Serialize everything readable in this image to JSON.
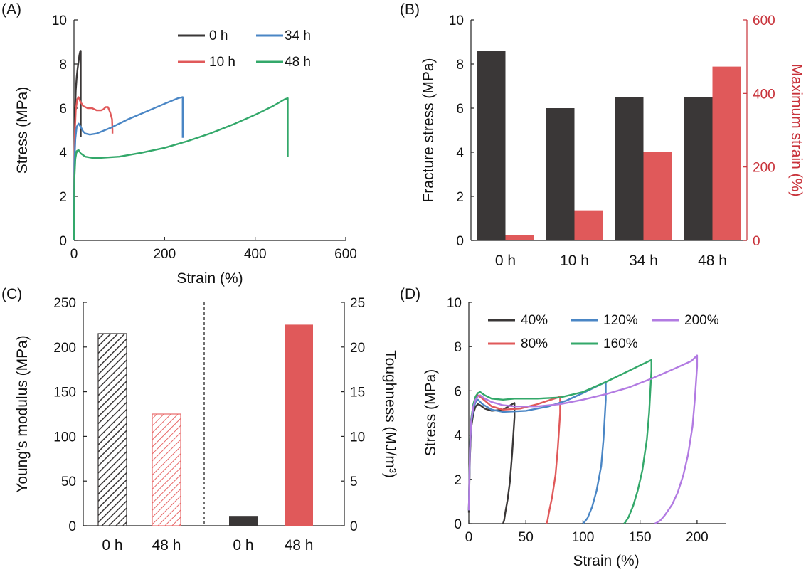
{
  "colors": {
    "black": "#3a3737",
    "red": "#e0595a",
    "red_axis": "#c8323a",
    "blue": "#4a86c5",
    "green": "#33a86a",
    "purple": "#b27be2",
    "red_hatch": "#e86a6a"
  },
  "panels": {
    "A": {
      "label": "(A)"
    },
    "B": {
      "label": "(B)"
    },
    "C": {
      "label": "(C)"
    },
    "D": {
      "label": "(D)"
    }
  },
  "chart_data": [
    {
      "panel": "(A)",
      "type": "line",
      "xlabel": "Strain (%)",
      "ylabel": "Stress (MPa)",
      "xlim": [
        0,
        600
      ],
      "ylim": [
        0,
        10
      ],
      "xticks": [
        "0",
        "200",
        "400",
        "600"
      ],
      "yticks": [
        "0",
        "2",
        "4",
        "6",
        "8",
        "10"
      ],
      "legend_position": "top-right",
      "series": [
        {
          "name": "0 h",
          "color": "#3a3737",
          "x": [
            0,
            2,
            4,
            6,
            8,
            10,
            12,
            14,
            15,
            15
          ],
          "y": [
            0,
            5.5,
            6.8,
            7.4,
            7.8,
            8.1,
            8.4,
            8.6,
            8.6,
            4.7
          ]
        },
        {
          "name": "10 h",
          "color": "#e0595a",
          "x": [
            0,
            1,
            2,
            4,
            7,
            10,
            14,
            20,
            30,
            40,
            50,
            60,
            65,
            70,
            75,
            80,
            84,
            85,
            85
          ],
          "y": [
            0,
            3.8,
            5.0,
            5.9,
            6.4,
            6.5,
            6.3,
            6.1,
            6.0,
            6.0,
            5.9,
            5.9,
            5.95,
            6.05,
            6.05,
            5.8,
            5.5,
            5.0,
            4.85
          ]
        },
        {
          "name": "34 h",
          "color": "#4a86c5",
          "x": [
            0,
            1,
            3,
            6,
            10,
            15,
            20,
            25,
            35,
            50,
            80,
            120,
            160,
            200,
            230,
            240,
            240
          ],
          "y": [
            0,
            3.5,
            4.6,
            5.15,
            5.3,
            5.15,
            4.95,
            4.85,
            4.8,
            4.85,
            5.1,
            5.5,
            5.85,
            6.2,
            6.45,
            6.5,
            4.65
          ]
        },
        {
          "name": "48 h",
          "color": "#33a86a",
          "x": [
            0,
            1,
            3,
            6,
            10,
            15,
            25,
            40,
            60,
            100,
            150,
            200,
            250,
            300,
            350,
            400,
            440,
            465,
            472,
            472
          ],
          "y": [
            0,
            2.8,
            3.7,
            4.05,
            4.1,
            3.95,
            3.8,
            3.75,
            3.75,
            3.8,
            3.98,
            4.2,
            4.5,
            4.85,
            5.25,
            5.7,
            6.1,
            6.4,
            6.45,
            3.8
          ]
        }
      ]
    },
    {
      "panel": "(B)",
      "type": "bar",
      "categories": [
        "0 h",
        "10 h",
        "34 h",
        "48 h"
      ],
      "ylabel": "Fracture stress (MPa)",
      "ylabel_right": "Maximum strain (%)",
      "ylim": [
        0,
        10
      ],
      "ylim_right": [
        0,
        600
      ],
      "yticks": [
        "0",
        "2",
        "4",
        "6",
        "8",
        "10"
      ],
      "yticks_right": [
        "0",
        "200",
        "400",
        "600"
      ],
      "series": [
        {
          "name": "Fracture stress (MPa)",
          "axis": "left",
          "color": "#3a3737",
          "values": [
            8.6,
            6.0,
            6.5,
            6.5
          ]
        },
        {
          "name": "Maximum strain (%)",
          "axis": "right",
          "color": "#e0595a",
          "values": [
            15,
            82,
            240,
            473
          ]
        }
      ]
    },
    {
      "panel": "(C)",
      "type": "bar",
      "categories": [
        "0 h",
        "48 h",
        "0 h",
        "48 h"
      ],
      "ylabel": "Young's modulus (MPa)",
      "ylabel_right": "Toughness (MJ/m³)",
      "ylim": [
        0,
        250
      ],
      "ylim_right": [
        0,
        25
      ],
      "yticks": [
        "0",
        "50",
        "100",
        "150",
        "200",
        "250"
      ],
      "yticks_right": [
        "0",
        "5",
        "10",
        "15",
        "20",
        "25"
      ],
      "bars": [
        {
          "group": "Young's modulus",
          "category": "0 h",
          "axis": "left",
          "value": 215,
          "style": "hatched-black"
        },
        {
          "group": "Young's modulus",
          "category": "48 h",
          "axis": "left",
          "value": 125,
          "style": "hatched-red"
        },
        {
          "group": "Toughness",
          "category": "0 h",
          "axis": "right",
          "value": 1.1,
          "style": "solid-black"
        },
        {
          "group": "Toughness",
          "category": "48 h",
          "axis": "right",
          "value": 22.5,
          "style": "solid-red"
        }
      ]
    },
    {
      "panel": "(D)",
      "type": "line",
      "xlabel": "Strain (%)",
      "ylabel": "Stress (MPa)",
      "xlim": [
        0,
        225
      ],
      "ylim": [
        0,
        10
      ],
      "xticks": [
        "0",
        "50",
        "100",
        "150",
        "200"
      ],
      "yticks": [
        "0",
        "2",
        "4",
        "6",
        "8",
        "10"
      ],
      "legend_position": "top",
      "series": [
        {
          "name": "40%",
          "color": "#3a3737",
          "x": [
            0,
            1,
            2,
            4,
            6,
            8,
            10,
            14,
            20,
            30,
            38,
            40,
            40,
            38,
            36,
            34,
            32,
            31,
            30
          ],
          "y": [
            0.5,
            3.0,
            4.3,
            5.0,
            5.3,
            5.4,
            5.35,
            5.2,
            5.1,
            5.15,
            5.4,
            5.45,
            4.8,
            3.2,
            1.9,
            1.1,
            0.5,
            0.15,
            0
          ]
        },
        {
          "name": "80%",
          "color": "#e0595a",
          "x": [
            0,
            1,
            2,
            4,
            6,
            8,
            12,
            20,
            30,
            45,
            60,
            72,
            78,
            80,
            80,
            78,
            76,
            73,
            70,
            69,
            68
          ],
          "y": [
            0.6,
            3.4,
            4.6,
            5.3,
            5.7,
            5.8,
            5.65,
            5.3,
            5.15,
            5.2,
            5.4,
            5.6,
            5.7,
            5.75,
            5.0,
            3.4,
            2.2,
            1.2,
            0.45,
            0.15,
            0
          ]
        },
        {
          "name": "120%",
          "color": "#4a86c5",
          "x": [
            0,
            1,
            2,
            4,
            6,
            8,
            12,
            20,
            30,
            50,
            70,
            85,
            100,
            110,
            118,
            120,
            120,
            118,
            116,
            112,
            108,
            104,
            101,
            100
          ],
          "y": [
            0.6,
            3.3,
            4.5,
            5.2,
            5.5,
            5.6,
            5.4,
            5.15,
            5.05,
            5.1,
            5.3,
            5.55,
            5.9,
            6.15,
            6.35,
            6.4,
            5.6,
            3.8,
            2.6,
            1.5,
            0.75,
            0.25,
            0.05,
            0
          ]
        },
        {
          "name": "160%",
          "color": "#33a86a",
          "x": [
            0,
            1,
            2,
            4,
            6,
            8,
            10,
            14,
            20,
            30,
            40,
            60,
            80,
            100,
            120,
            140,
            150,
            156,
            160,
            160,
            158,
            156,
            152,
            148,
            144,
            140,
            137,
            136
          ],
          "y": [
            0.6,
            3.5,
            4.7,
            5.4,
            5.75,
            5.9,
            5.95,
            5.8,
            5.65,
            5.6,
            5.65,
            5.65,
            5.7,
            5.95,
            6.4,
            6.9,
            7.15,
            7.3,
            7.4,
            6.9,
            5.0,
            3.8,
            2.4,
            1.5,
            0.8,
            0.3,
            0.05,
            0
          ]
        },
        {
          "name": "200%",
          "color": "#b27be2",
          "x": [
            0,
            1,
            2,
            4,
            6,
            8,
            10,
            14,
            20,
            30,
            40,
            60,
            80,
            100,
            120,
            140,
            160,
            180,
            195,
            200,
            200,
            198,
            196,
            192,
            188,
            183,
            178,
            172,
            168,
            165,
            163
          ],
          "y": [
            0.6,
            3.4,
            4.6,
            5.3,
            5.6,
            5.75,
            5.8,
            5.65,
            5.5,
            5.35,
            5.3,
            5.3,
            5.4,
            5.6,
            5.85,
            6.15,
            6.55,
            7.0,
            7.35,
            7.6,
            7.1,
            5.6,
            4.4,
            3.1,
            2.2,
            1.4,
            0.85,
            0.4,
            0.15,
            0.05,
            0
          ]
        }
      ]
    }
  ]
}
